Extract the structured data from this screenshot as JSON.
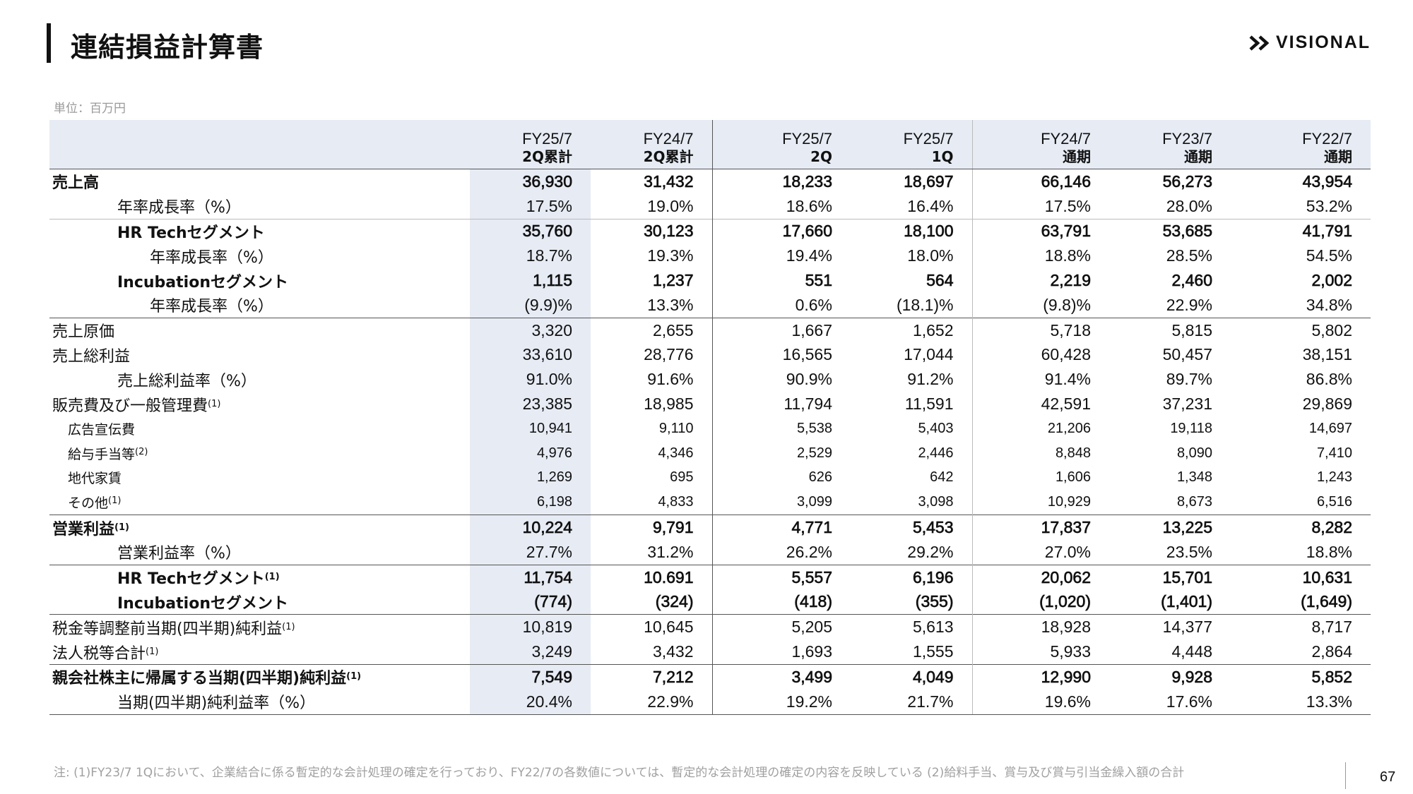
{
  "title": "連結損益計算書",
  "logo": {
    "text": "VISIONAL"
  },
  "unit": "単位：百万円",
  "columns": [
    {
      "l1": "FY25/7",
      "l2": "2Q累計"
    },
    {
      "l1": "FY24/7",
      "l2": "2Q累計"
    },
    {
      "l1": "FY25/7",
      "l2": "2Q"
    },
    {
      "l1": "FY25/7",
      "l2": "1Q"
    },
    {
      "l1": "FY24/7",
      "l2": "通期"
    },
    {
      "l1": "FY23/7",
      "l2": "通期"
    },
    {
      "l1": "FY22/7",
      "l2": "通期"
    }
  ],
  "rows": [
    {
      "label": "売上高",
      "sup": "",
      "values": [
        "36,930",
        "31,432",
        "18,233",
        "18,697",
        "66,146",
        "56,273",
        "43,954"
      ]
    },
    {
      "label": "年率成長率（%）",
      "sup": "",
      "values": [
        "17.5%",
        "19.0%",
        "18.6%",
        "16.4%",
        "17.5%",
        "28.0%",
        "53.2%"
      ]
    },
    {
      "label": "HR Techセグメント",
      "sup": "",
      "values": [
        "35,760",
        "30,123",
        "17,660",
        "18,100",
        "63,791",
        "53,685",
        "41,791"
      ]
    },
    {
      "label": "年率成長率（%）",
      "sup": "",
      "values": [
        "18.7%",
        "19.3%",
        "19.4%",
        "18.0%",
        "18.8%",
        "28.5%",
        "54.5%"
      ]
    },
    {
      "label": "Incubationセグメント",
      "sup": "",
      "values": [
        "1,115",
        "1,237",
        "551",
        "564",
        "2,219",
        "2,460",
        "2,002"
      ]
    },
    {
      "label": "年率成長率（%）",
      "sup": "",
      "values": [
        "(9.9)%",
        "13.3%",
        "0.6%",
        "(18.1)%",
        "(9.8)%",
        "22.9%",
        "34.8%"
      ]
    },
    {
      "label": "売上原価",
      "sup": "",
      "values": [
        "3,320",
        "2,655",
        "1,667",
        "1,652",
        "5,718",
        "5,815",
        "5,802"
      ]
    },
    {
      "label": "売上総利益",
      "sup": "",
      "values": [
        "33,610",
        "28,776",
        "16,565",
        "17,044",
        "60,428",
        "50,457",
        "38,151"
      ]
    },
    {
      "label": "売上総利益率（%）",
      "sup": "",
      "values": [
        "91.0%",
        "91.6%",
        "90.9%",
        "91.2%",
        "91.4%",
        "89.7%",
        "86.8%"
      ]
    },
    {
      "label": "販売費及び一般管理費",
      "sup": "(1)",
      "values": [
        "23,385",
        "18,985",
        "11,794",
        "11,591",
        "42,591",
        "37,231",
        "29,869"
      ]
    },
    {
      "label": "広告宣伝費",
      "sup": "",
      "values": [
        "10,941",
        "9,110",
        "5,538",
        "5,403",
        "21,206",
        "19,118",
        "14,697"
      ]
    },
    {
      "label": "給与手当等",
      "sup": "(2)",
      "values": [
        "4,976",
        "4,346",
        "2,529",
        "2,446",
        "8,848",
        "8,090",
        "7,410"
      ]
    },
    {
      "label": "地代家賃",
      "sup": "",
      "values": [
        "1,269",
        "695",
        "626",
        "642",
        "1,606",
        "1,348",
        "1,243"
      ]
    },
    {
      "label": "その他",
      "sup": "(1)",
      "values": [
        "6,198",
        "4,833",
        "3,099",
        "3,098",
        "10,929",
        "8,673",
        "6,516"
      ]
    },
    {
      "label": "営業利益",
      "sup": "(1)",
      "values": [
        "10,224",
        "9,791",
        "4,771",
        "5,453",
        "17,837",
        "13,225",
        "8,282"
      ]
    },
    {
      "label": "営業利益率（%）",
      "sup": "",
      "values": [
        "27.7%",
        "31.2%",
        "26.2%",
        "29.2%",
        "27.0%",
        "23.5%",
        "18.8%"
      ]
    },
    {
      "label": "HR Techセグメント",
      "sup": "(1)",
      "values": [
        "11,754",
        "10.691",
        "5,557",
        "6,196",
        "20,062",
        "15,701",
        "10,631"
      ]
    },
    {
      "label": "Incubationセグメント",
      "sup": "",
      "values": [
        "(774)",
        "(324)",
        "(418)",
        "(355)",
        "(1,020)",
        "(1,401)",
        "(1,649)"
      ]
    },
    {
      "label": "税金等調整前当期(四半期)純利益",
      "sup": "(1)",
      "values": [
        "10,819",
        "10,645",
        "5,205",
        "5,613",
        "18,928",
        "14,377",
        "8,717"
      ]
    },
    {
      "label": "法人税等合計",
      "sup": "(1)",
      "values": [
        "3,249",
        "3,432",
        "1,693",
        "1,555",
        "5,933",
        "4,448",
        "2,864"
      ]
    },
    {
      "label": "親会社株主に帰属する当期(四半期)純利益",
      "sup": "(1)",
      "values": [
        "7,549",
        "7,212",
        "3,499",
        "4,049",
        "12,990",
        "9,928",
        "5,852"
      ]
    },
    {
      "label": "当期(四半期)純利益率（%）",
      "sup": "",
      "values": [
        "20.4%",
        "22.9%",
        "19.2%",
        "21.7%",
        "19.6%",
        "17.6%",
        "13.3%"
      ]
    }
  ],
  "footnote": "注: (1)FY23/7 1Qにおいて、企業結合に係る暫定的な会計処理の確定を行っており、FY22/7の各数値については、暫定的な会計処理の確定の内容を反映している (2)給料手当、賞与及び賞与引当金繰入額の合計",
  "page_number": "67"
}
